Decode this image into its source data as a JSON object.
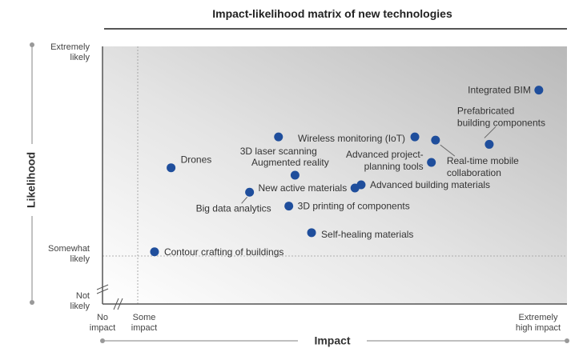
{
  "chart_data": {
    "type": "scatter",
    "title": "Impact-likelihood matrix of new technologies",
    "xlabel": "Impact",
    "ylabel": "Likelihood",
    "xlim": [
      0,
      10
    ],
    "ylim": [
      0,
      10
    ],
    "grid": false,
    "x_ticks": [
      {
        "value": 0,
        "lines": [
          "No",
          "impact"
        ]
      },
      {
        "value": 0.75,
        "lines": [
          "Some",
          "impact"
        ]
      },
      {
        "value": 10,
        "lines": [
          "Extremely",
          "high impact"
        ]
      }
    ],
    "y_ticks": [
      {
        "value": 0,
        "lines": [
          "Not",
          "likely"
        ]
      },
      {
        "value": 2.5,
        "lines": [
          "Somewhat",
          "likely"
        ]
      },
      {
        "value": 10,
        "lines": [
          "Extremely",
          "likely"
        ]
      }
    ],
    "points": [
      {
        "label": "Integrated BIM",
        "x": 9.9,
        "y": 9.0
      },
      {
        "label": "Prefabricated building components",
        "x": 8.7,
        "y": 6.45
      },
      {
        "label": "Real-time mobile collaboration",
        "x": 7.4,
        "y": 6.65
      },
      {
        "label": "Advanced project-planning tools",
        "x": 7.3,
        "y": 5.6
      },
      {
        "label": "Wireless monitoring (IoT)",
        "x": 6.9,
        "y": 6.8
      },
      {
        "label": "3D laser scanning",
        "x": 3.6,
        "y": 6.8
      },
      {
        "label": "Augmented reality",
        "x": 4.0,
        "y": 5.0
      },
      {
        "label": "Drones",
        "x": 1.0,
        "y": 5.35
      },
      {
        "label": "Advanced building materials",
        "x": 5.6,
        "y": 4.55
      },
      {
        "label": "New active materials",
        "x": 5.45,
        "y": 4.4
      },
      {
        "label": "Big data analytics",
        "x": 2.9,
        "y": 4.2
      },
      {
        "label": "3D printing of components",
        "x": 3.85,
        "y": 3.55
      },
      {
        "label": "Self-healing materials",
        "x": 4.4,
        "y": 2.3
      },
      {
        "label": "Contour crafting of buildings",
        "x": 0.6,
        "y": 1.4
      }
    ],
    "point_color": "#1f4e9c",
    "background_gradient": [
      "#c8c8c8",
      "#ffffff"
    ]
  }
}
